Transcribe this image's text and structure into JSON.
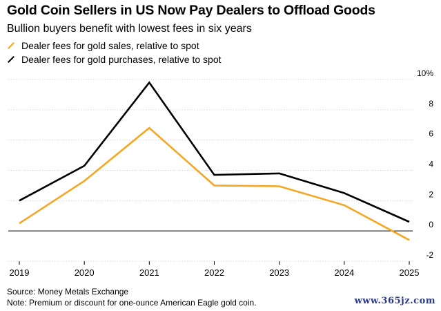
{
  "header": {
    "title": "Gold Coin Sellers in US Now Pay Dealers to Offload Goods",
    "subtitle": "Bullion buyers benefit with lowest fees in six years"
  },
  "footer": {
    "source": "Source: Money Metals Exchange",
    "note": "Note: Premium or discount for one-ounce American Eagle gold coin."
  },
  "watermark": "www.365jz.com",
  "chart_data": {
    "type": "line",
    "x": [
      "2019",
      "2020",
      "2021",
      "2022",
      "2023",
      "2024",
      "2025"
    ],
    "series": [
      {
        "name": "Dealer fees for gold sales, relative to spot",
        "color": "#f5a623",
        "values": [
          0.5,
          3.3,
          6.8,
          3.0,
          2.95,
          1.7,
          -0.6
        ]
      },
      {
        "name": "Dealer fees for gold purchases, relative to spot",
        "color": "#000000",
        "values": [
          2.0,
          4.3,
          9.8,
          3.7,
          3.8,
          2.5,
          0.6
        ]
      }
    ],
    "yticks": [
      "10%",
      "8",
      "6",
      "4",
      "2",
      "0",
      "-2"
    ],
    "ytick_values": [
      10,
      8,
      6,
      4,
      2,
      0,
      -2
    ],
    "ylim": [
      -2,
      10
    ],
    "grid": true,
    "legend_position": "top-left"
  }
}
